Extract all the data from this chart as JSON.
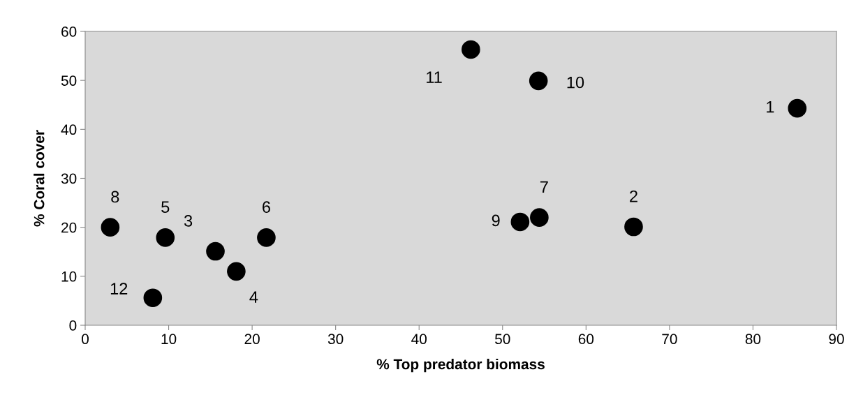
{
  "chart_data": {
    "type": "scatter",
    "xlabel": "% Top predator biomass",
    "ylabel": "% Coral cover",
    "x": [
      85.3,
      65.7,
      15.6,
      18.1,
      9.6,
      21.7,
      54.4,
      3.0,
      52.1,
      54.3,
      46.2,
      8.1
    ],
    "values": [
      44.3,
      20.1,
      15.1,
      11.0,
      17.9,
      17.9,
      22.0,
      20.0,
      21.1,
      49.9,
      56.3,
      5.6
    ],
    "color": "#000000",
    "marker": "circle",
    "grid": false,
    "legend": false,
    "xlim": [
      0,
      90
    ],
    "xticks": [
      0,
      10,
      20,
      30,
      40,
      50,
      60,
      70,
      80,
      90
    ],
    "ylim": [
      0,
      60
    ],
    "yticks": [
      0,
      10,
      20,
      30,
      40,
      50,
      60
    ],
    "annotations": [
      {
        "text": "1",
        "x": 85.3,
        "y": 44.3
      },
      {
        "text": "2",
        "x": 65.7,
        "y": 20.1
      },
      {
        "text": "3",
        "x": 15.6,
        "y": 15.1
      },
      {
        "text": "4",
        "x": 18.1,
        "y": 11.0
      },
      {
        "text": "5",
        "x": 9.6,
        "y": 17.9
      },
      {
        "text": "6",
        "x": 21.7,
        "y": 17.9
      },
      {
        "text": "7",
        "x": 54.4,
        "y": 22.0
      },
      {
        "text": "8",
        "x": 3.0,
        "y": 20.0
      },
      {
        "text": "9",
        "x": 52.1,
        "y": 21.1
      },
      {
        "text": "10",
        "x": 54.3,
        "y": 49.9
      },
      {
        "text": "11",
        "x": 46.2,
        "y": 56.3
      },
      {
        "text": "12",
        "x": 8.1,
        "y": 5.6
      }
    ]
  }
}
